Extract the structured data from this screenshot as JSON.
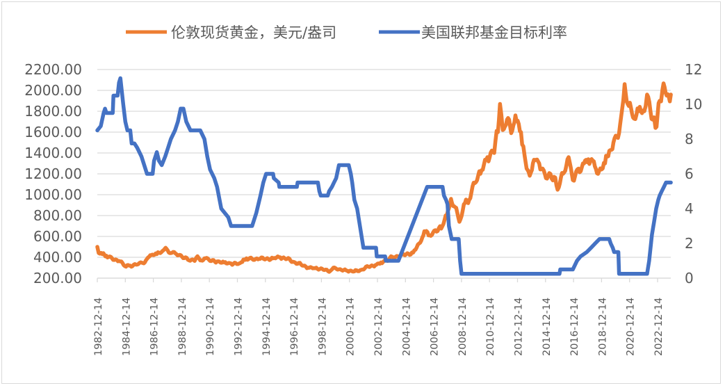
{
  "chart_data": {
    "type": "line",
    "title": "",
    "legend_position": "top",
    "grid": true,
    "xlabel": "",
    "ylabel": "",
    "x_tick_labels": [
      "1982-12-14",
      "1984-12-14",
      "1986-12-14",
      "1988-12-14",
      "1990-12-14",
      "1992-12-14",
      "1994-12-14",
      "1996-12-14",
      "1998-12-14",
      "2000-12-14",
      "2002-12-14",
      "2004-12-14",
      "2006-12-14",
      "2008-12-14",
      "2010-12-14",
      "2012-12-14",
      "2014-12-14",
      "2016-12-14",
      "2018-12-14",
      "2020-12-14",
      "2022-12-14"
    ],
    "x_range_years": [
      1982.95,
      2023.9
    ],
    "y_left": {
      "min": 200,
      "max": 2200,
      "step": 200,
      "tick_labels": [
        "200.00",
        "400.00",
        "600.00",
        "800.00",
        "1000.00",
        "1200.00",
        "1400.00",
        "1600.00",
        "1800.00",
        "2000.00",
        "2200.00"
      ]
    },
    "y_right": {
      "min": 0,
      "max": 12,
      "step": 2,
      "tick_labels": [
        "0",
        "2",
        "4",
        "6",
        "8",
        "10",
        "12"
      ]
    },
    "series": [
      {
        "name": "伦敦现货黄金，美元/盎司",
        "axis": "left",
        "color": "#ED7D31",
        "points": [
          [
            1982.95,
            500
          ],
          [
            1983.05,
            440
          ],
          [
            1983.3,
            430
          ],
          [
            1983.6,
            415
          ],
          [
            1984.0,
            390
          ],
          [
            1984.5,
            365
          ],
          [
            1985.0,
            310
          ],
          [
            1985.3,
            320
          ],
          [
            1985.8,
            330
          ],
          [
            1986.2,
            345
          ],
          [
            1986.5,
            385
          ],
          [
            1986.8,
            420
          ],
          [
            1987.2,
            430
          ],
          [
            1987.6,
            460
          ],
          [
            1987.9,
            480
          ],
          [
            1988.2,
            440
          ],
          [
            1988.6,
            430
          ],
          [
            1989.0,
            405
          ],
          [
            1989.5,
            370
          ],
          [
            1989.9,
            365
          ],
          [
            1990.1,
            410
          ],
          [
            1990.3,
            370
          ],
          [
            1990.6,
            390
          ],
          [
            1991.0,
            365
          ],
          [
            1991.5,
            360
          ],
          [
            1992.0,
            350
          ],
          [
            1992.5,
            340
          ],
          [
            1993.0,
            335
          ],
          [
            1993.3,
            355
          ],
          [
            1993.6,
            390
          ],
          [
            1994.0,
            385
          ],
          [
            1994.5,
            385
          ],
          [
            1995.0,
            385
          ],
          [
            1995.5,
            390
          ],
          [
            1996.0,
            400
          ],
          [
            1996.5,
            385
          ],
          [
            1997.0,
            355
          ],
          [
            1997.5,
            330
          ],
          [
            1998.0,
            300
          ],
          [
            1998.5,
            295
          ],
          [
            1999.0,
            290
          ],
          [
            1999.5,
            260
          ],
          [
            1999.8,
            300
          ],
          [
            2000.2,
            285
          ],
          [
            2000.8,
            270
          ],
          [
            2001.3,
            265
          ],
          [
            2001.8,
            280
          ],
          [
            2002.3,
            310
          ],
          [
            2002.8,
            325
          ],
          [
            2003.2,
            350
          ],
          [
            2003.6,
            370
          ],
          [
            2004.0,
            405
          ],
          [
            2004.5,
            410
          ],
          [
            2005.0,
            430
          ],
          [
            2005.5,
            445
          ],
          [
            2006.0,
            540
          ],
          [
            2006.3,
            650
          ],
          [
            2006.6,
            610
          ],
          [
            2007.0,
            655
          ],
          [
            2007.5,
            675
          ],
          [
            2007.9,
            800
          ],
          [
            2008.2,
            960
          ],
          [
            2008.5,
            880
          ],
          [
            2008.8,
            740
          ],
          [
            2009.2,
            920
          ],
          [
            2009.5,
            950
          ],
          [
            2009.9,
            1110
          ],
          [
            2010.3,
            1200
          ],
          [
            2010.8,
            1360
          ],
          [
            2011.2,
            1410
          ],
          [
            2011.55,
            1600
          ],
          [
            2011.7,
            1870
          ],
          [
            2011.9,
            1620
          ],
          [
            2012.2,
            1720
          ],
          [
            2012.5,
            1590
          ],
          [
            2012.8,
            1760
          ],
          [
            2013.2,
            1600
          ],
          [
            2013.45,
            1380
          ],
          [
            2013.6,
            1250
          ],
          [
            2013.9,
            1210
          ],
          [
            2014.2,
            1330
          ],
          [
            2014.5,
            1300
          ],
          [
            2014.9,
            1200
          ],
          [
            2015.3,
            1200
          ],
          [
            2015.9,
            1070
          ],
          [
            2016.2,
            1200
          ],
          [
            2016.6,
            1360
          ],
          [
            2016.9,
            1140
          ],
          [
            2017.3,
            1250
          ],
          [
            2017.7,
            1300
          ],
          [
            2018.0,
            1340
          ],
          [
            2018.4,
            1320
          ],
          [
            2018.7,
            1200
          ],
          [
            2019.2,
            1300
          ],
          [
            2019.5,
            1420
          ],
          [
            2019.8,
            1500
          ],
          [
            2020.2,
            1590
          ],
          [
            2020.5,
            1900
          ],
          [
            2020.6,
            2060
          ],
          [
            2020.9,
            1850
          ],
          [
            2021.2,
            1740
          ],
          [
            2021.6,
            1800
          ],
          [
            2022.0,
            1800
          ],
          [
            2022.2,
            1960
          ],
          [
            2022.6,
            1720
          ],
          [
            2022.8,
            1640
          ],
          [
            2023.1,
            1900
          ],
          [
            2023.3,
            2010
          ],
          [
            2023.6,
            1950
          ],
          [
            2023.9,
            1960
          ]
        ]
      },
      {
        "name": "美国联邦基金目标利率",
        "axis": "right",
        "color": "#4472C4",
        "points": [
          [
            1982.95,
            8.5
          ],
          [
            1983.2,
            8.75
          ],
          [
            1983.4,
            9.5
          ],
          [
            1983.5,
            9.75
          ],
          [
            1983.6,
            9.5
          ],
          [
            1984.05,
            9.5
          ],
          [
            1984.1,
            10.5
          ],
          [
            1984.4,
            10.5
          ],
          [
            1984.5,
            11.25
          ],
          [
            1984.6,
            11.5
          ],
          [
            1984.8,
            10
          ],
          [
            1984.95,
            9
          ],
          [
            1985.1,
            8.5
          ],
          [
            1985.3,
            8.5
          ],
          [
            1985.4,
            7.75
          ],
          [
            1985.6,
            7.75
          ],
          [
            1985.8,
            7.5
          ],
          [
            1986.1,
            7.0
          ],
          [
            1986.3,
            6.5
          ],
          [
            1986.5,
            6.0
          ],
          [
            1986.9,
            6.0
          ],
          [
            1987.0,
            6.75
          ],
          [
            1987.2,
            7.25
          ],
          [
            1987.35,
            6.75
          ],
          [
            1987.55,
            6.5
          ],
          [
            1987.8,
            7.0
          ],
          [
            1988.0,
            7.5
          ],
          [
            1988.2,
            8.0
          ],
          [
            1988.5,
            8.5
          ],
          [
            1988.7,
            9.0
          ],
          [
            1988.9,
            9.75
          ],
          [
            1989.1,
            9.75
          ],
          [
            1989.3,
            9.0
          ],
          [
            1989.6,
            8.5
          ],
          [
            1990.3,
            8.5
          ],
          [
            1990.6,
            8.0
          ],
          [
            1990.8,
            7.0
          ],
          [
            1991.0,
            6.25
          ],
          [
            1991.3,
            5.75
          ],
          [
            1991.5,
            5.25
          ],
          [
            1991.8,
            4.0
          ],
          [
            1992.3,
            3.5
          ],
          [
            1992.5,
            3.0
          ],
          [
            1994.0,
            3.0
          ],
          [
            1994.1,
            3.25
          ],
          [
            1994.3,
            3.75
          ],
          [
            1994.45,
            4.25
          ],
          [
            1994.6,
            4.75
          ],
          [
            1994.8,
            5.5
          ],
          [
            1995.0,
            6.0
          ],
          [
            1995.5,
            6.0
          ],
          [
            1995.55,
            5.75
          ],
          [
            1995.9,
            5.5
          ],
          [
            1995.95,
            5.25
          ],
          [
            1997.2,
            5.25
          ],
          [
            1997.25,
            5.5
          ],
          [
            1998.7,
            5.5
          ],
          [
            1998.8,
            5.0
          ],
          [
            1998.9,
            4.75
          ],
          [
            1999.4,
            4.75
          ],
          [
            1999.5,
            5.0
          ],
          [
            1999.7,
            5.25
          ],
          [
            1999.85,
            5.5
          ],
          [
            2000.0,
            5.75
          ],
          [
            2000.2,
            6.5
          ],
          [
            2000.9,
            6.5
          ],
          [
            2001.05,
            6.0
          ],
          [
            2001.15,
            5.5
          ],
          [
            2001.3,
            4.5
          ],
          [
            2001.5,
            4.0
          ],
          [
            2001.7,
            3.0
          ],
          [
            2001.9,
            2.0
          ],
          [
            2001.95,
            1.75
          ],
          [
            2002.85,
            1.75
          ],
          [
            2002.9,
            1.25
          ],
          [
            2003.5,
            1.25
          ],
          [
            2003.55,
            1.0
          ],
          [
            2004.45,
            1.0
          ],
          [
            2006.5,
            5.25
          ],
          [
            2007.6,
            5.25
          ],
          [
            2007.7,
            4.75
          ],
          [
            2007.85,
            4.5
          ],
          [
            2007.95,
            4.25
          ],
          [
            2008.05,
            3.0
          ],
          [
            2008.25,
            2.25
          ],
          [
            2008.75,
            2.25
          ],
          [
            2008.85,
            1.0
          ],
          [
            2008.95,
            0.25
          ],
          [
            2015.95,
            0.25
          ],
          [
            2016.0,
            0.5
          ],
          [
            2016.9,
            0.5
          ],
          [
            2017.2,
            1.0
          ],
          [
            2017.45,
            1.25
          ],
          [
            2017.9,
            1.5
          ],
          [
            2018.2,
            1.75
          ],
          [
            2018.5,
            2.0
          ],
          [
            2018.8,
            2.25
          ],
          [
            2019.5,
            2.25
          ],
          [
            2019.6,
            2.0
          ],
          [
            2019.75,
            1.75
          ],
          [
            2019.85,
            1.5
          ],
          [
            2020.15,
            1.5
          ],
          [
            2020.2,
            0.25
          ],
          [
            2022.2,
            0.25
          ],
          [
            2022.25,
            0.5
          ],
          [
            2022.35,
            1.0
          ],
          [
            2022.45,
            1.75
          ],
          [
            2022.55,
            2.5
          ],
          [
            2022.7,
            3.25
          ],
          [
            2022.85,
            4.0
          ],
          [
            2023.0,
            4.5
          ],
          [
            2023.1,
            4.75
          ],
          [
            2023.25,
            5.0
          ],
          [
            2023.4,
            5.25
          ],
          [
            2023.55,
            5.5
          ],
          [
            2023.9,
            5.5
          ]
        ]
      }
    ]
  }
}
